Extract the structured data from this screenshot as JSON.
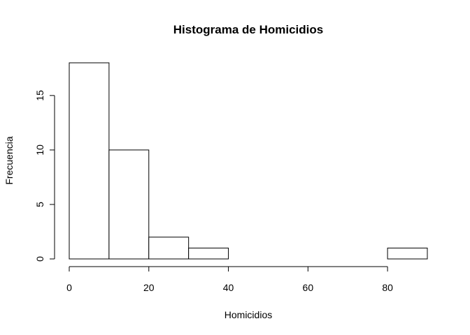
{
  "chart_data": {
    "type": "bar",
    "title": "Histograma de Homicidios",
    "xlabel": "Homicidios",
    "ylabel": "Frecuencia",
    "bins": [
      {
        "start": 0,
        "end": 10,
        "count": 18
      },
      {
        "start": 10,
        "end": 20,
        "count": 10
      },
      {
        "start": 20,
        "end": 30,
        "count": 2
      },
      {
        "start": 30,
        "end": 40,
        "count": 1
      },
      {
        "start": 40,
        "end": 50,
        "count": 0
      },
      {
        "start": 50,
        "end": 60,
        "count": 0
      },
      {
        "start": 60,
        "end": 70,
        "count": 0
      },
      {
        "start": 70,
        "end": 80,
        "count": 0
      },
      {
        "start": 80,
        "end": 90,
        "count": 1
      }
    ],
    "x_ticks": [
      0,
      20,
      40,
      60,
      80
    ],
    "y_ticks": [
      0,
      5,
      10,
      15
    ],
    "xlim": [
      0,
      90
    ],
    "ylim": [
      0,
      18
    ],
    "grid": false
  }
}
